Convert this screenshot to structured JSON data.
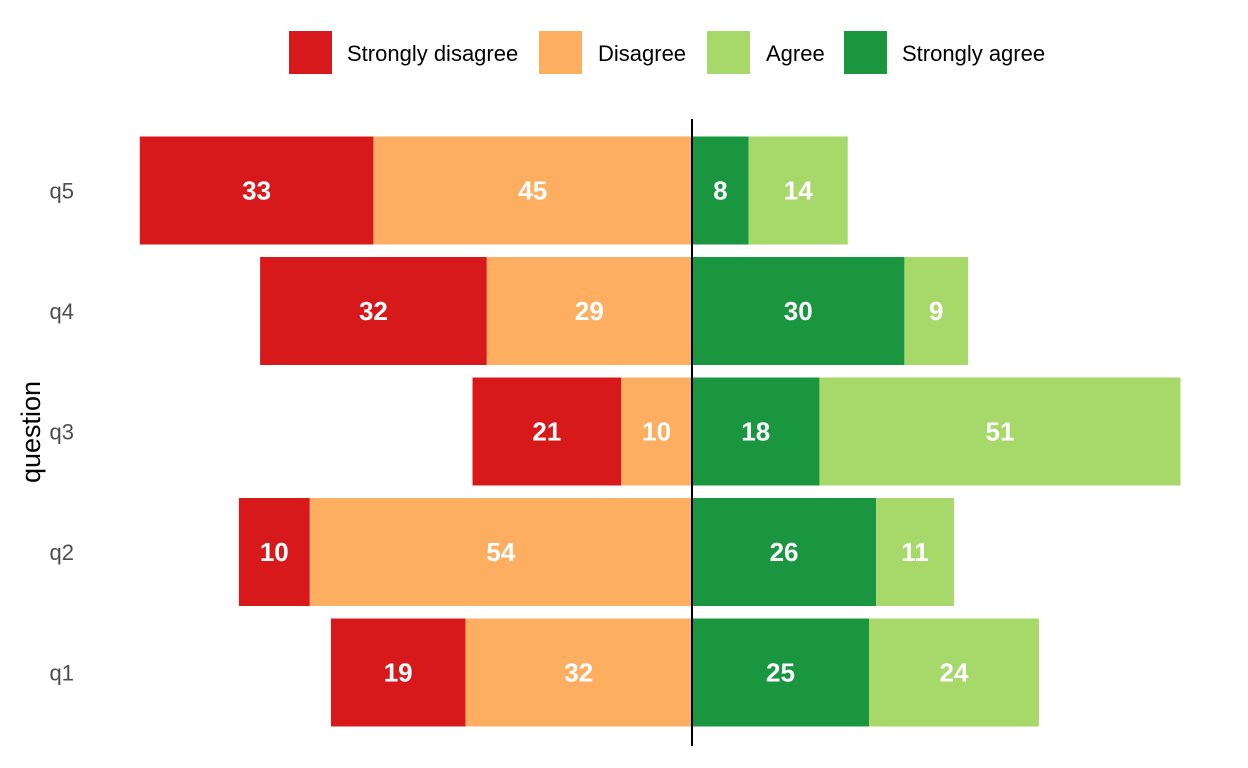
{
  "chart_data": {
    "type": "bar",
    "orientation": "horizontal",
    "layout": "diverging-stacked",
    "title": "",
    "xlabel": "",
    "ylabel": "question",
    "categories": [
      "q1",
      "q2",
      "q3",
      "q4",
      "q5"
    ],
    "series": [
      {
        "name": "Strongly disagree",
        "side": "negative",
        "color": "#d7191c",
        "values": [
          19,
          10,
          21,
          32,
          33
        ]
      },
      {
        "name": "Disagree",
        "side": "negative",
        "color": "#fdae61",
        "values": [
          32,
          54,
          10,
          29,
          45
        ]
      },
      {
        "name": "Agree",
        "side": "positive",
        "color": "#a6d96a",
        "values": [
          24,
          11,
          51,
          9,
          14
        ]
      },
      {
        "name": "Strongly agree",
        "side": "positive",
        "color": "#1a9641",
        "values": [
          25,
          26,
          18,
          30,
          8
        ]
      }
    ],
    "legend": {
      "position": "top",
      "order": [
        "Strongly disagree",
        "Disagree",
        "Agree",
        "Strongly agree"
      ]
    },
    "center_line": true,
    "grid": false,
    "xaxis_visible": false
  }
}
